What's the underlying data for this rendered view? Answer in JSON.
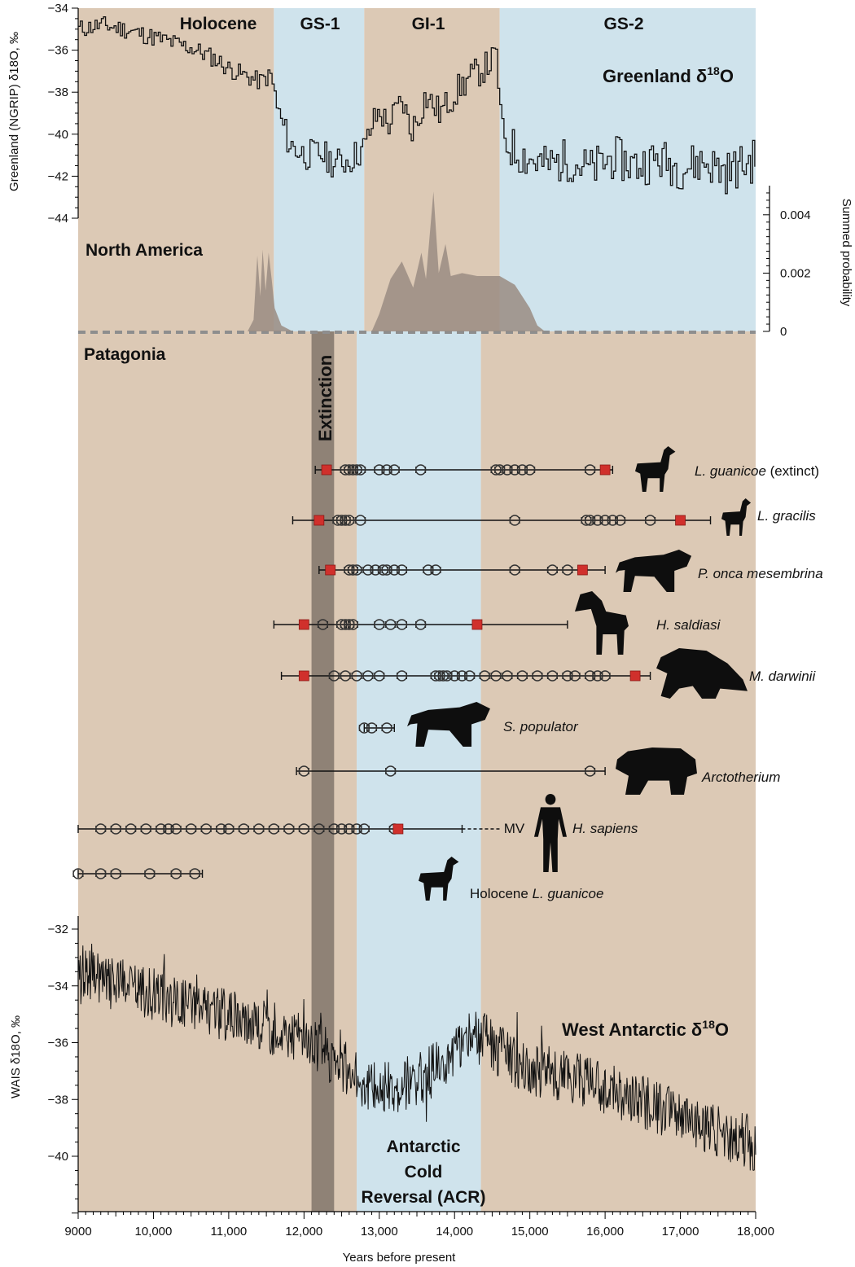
{
  "chart_data": {
    "type": "line",
    "x_axis": {
      "label": "Years before present",
      "ticks": [
        9000,
        10000,
        11000,
        12000,
        13000,
        14000,
        15000,
        16000,
        17000,
        18000
      ],
      "tick_labels": [
        "9000",
        "10,000",
        "11,000",
        "12,000",
        "13,000",
        "14,000",
        "15,000",
        "16,000",
        "17,000",
        "18,000"
      ],
      "range": [
        9000,
        18000
      ]
    },
    "periods_top": [
      {
        "label": "Holocene",
        "start": 9000,
        "end": 11600,
        "color": "#dcc9b5"
      },
      {
        "label": "GS-1",
        "start": 11600,
        "end": 12800,
        "color": "#cfe3ec"
      },
      {
        "label": "GI-1",
        "start": 12800,
        "end": 14600,
        "color": "#dcc9b5"
      },
      {
        "label": "GS-2",
        "start": 14600,
        "end": 18000,
        "color": "#cfe3ec"
      }
    ],
    "periods_bottom": [
      {
        "start": 9000,
        "end": 12700,
        "color": "#dcc9b5"
      },
      {
        "start": 12700,
        "end": 14350,
        "color": "#cfe3ec"
      },
      {
        "start": 14350,
        "end": 18000,
        "color": "#dcc9b5"
      }
    ],
    "greenland": {
      "title": "Greenland δ18O",
      "ylabel": "Greenland (NGRIP) δ18O, ‰",
      "ylim": [
        -44,
        -34
      ],
      "yticks": [
        -34,
        -36,
        -38,
        -40,
        -42,
        -44
      ],
      "points": [
        [
          9000,
          -35.0
        ],
        [
          9300,
          -34.8
        ],
        [
          9600,
          -35.0
        ],
        [
          9900,
          -35.3
        ],
        [
          10200,
          -35.6
        ],
        [
          10500,
          -35.9
        ],
        [
          10800,
          -36.4
        ],
        [
          11000,
          -36.9
        ],
        [
          11200,
          -37.2
        ],
        [
          11400,
          -37.5
        ],
        [
          11550,
          -37.2
        ],
        [
          11650,
          -39.0
        ],
        [
          11800,
          -40.5
        ],
        [
          12000,
          -41.0
        ],
        [
          12200,
          -40.9
        ],
        [
          12400,
          -41.4
        ],
        [
          12600,
          -41.2
        ],
        [
          12800,
          -40.6
        ],
        [
          12900,
          -39.5
        ],
        [
          13000,
          -38.9
        ],
        [
          13100,
          -39.6
        ],
        [
          13200,
          -39.0
        ],
        [
          13300,
          -38.4
        ],
        [
          13400,
          -39.8
        ],
        [
          13500,
          -39.3
        ],
        [
          13600,
          -38.2
        ],
        [
          13700,
          -38.6
        ],
        [
          13800,
          -39.0
        ],
        [
          14000,
          -38.0
        ],
        [
          14200,
          -37.3
        ],
        [
          14400,
          -36.8
        ],
        [
          14550,
          -36.3
        ],
        [
          14620,
          -40.2
        ],
        [
          14800,
          -40.8
        ],
        [
          15000,
          -41.2
        ],
        [
          15200,
          -41.5
        ],
        [
          15500,
          -41.2
        ],
        [
          15800,
          -41.7
        ],
        [
          16100,
          -41.1
        ],
        [
          16400,
          -41.5
        ],
        [
          16700,
          -41.2
        ],
        [
          17000,
          -41.6
        ],
        [
          17300,
          -41.3
        ],
        [
          17600,
          -41.8
        ],
        [
          17800,
          -41.5
        ],
        [
          18000,
          -41.2
        ]
      ]
    },
    "north_america_probability": {
      "region_label": "North America",
      "ylabel": "Summed probability",
      "ylim": [
        0,
        0.005
      ],
      "yticks": [
        0,
        0.002,
        0.004
      ],
      "ytick_labels": [
        "0",
        "0.002",
        "0.004"
      ],
      "points": [
        [
          11250,
          0
        ],
        [
          11330,
          0.0004
        ],
        [
          11380,
          0.0026
        ],
        [
          11420,
          0.0012
        ],
        [
          11450,
          0.0028
        ],
        [
          11490,
          0.0014
        ],
        [
          11530,
          0.0027
        ],
        [
          11570,
          0.0018
        ],
        [
          11610,
          0.0008
        ],
        [
          11700,
          0.0002
        ],
        [
          11850,
          0
        ],
        [
          12900,
          0
        ],
        [
          13000,
          0.0006
        ],
        [
          13150,
          0.0018
        ],
        [
          13300,
          0.0024
        ],
        [
          13450,
          0.0015
        ],
        [
          13560,
          0.0027
        ],
        [
          13620,
          0.0018
        ],
        [
          13720,
          0.0048
        ],
        [
          13790,
          0.002
        ],
        [
          13880,
          0.003
        ],
        [
          13950,
          0.0019
        ],
        [
          14100,
          0.002
        ],
        [
          14300,
          0.0019
        ],
        [
          14600,
          0.0019
        ],
        [
          14800,
          0.0016
        ],
        [
          15000,
          0.0008
        ],
        [
          15100,
          0.0002
        ],
        [
          15200,
          0
        ]
      ]
    },
    "patagonia": {
      "region_label": "Patagonia",
      "extinction_label": "Extinction",
      "extinction_band": [
        12100,
        12400
      ],
      "species": [
        {
          "name": "L. guanicoe",
          "suffix": " (extinct)",
          "italic": true,
          "ages": [
            12550,
            12600,
            12650,
            12700,
            12750,
            13000,
            13100,
            13200,
            13550,
            14550,
            14600,
            14700,
            14800,
            14900,
            15000,
            15800
          ],
          "red": [
            12300,
            16000
          ],
          "bar": [
            12150,
            16100
          ],
          "silhouette": "guanaco"
        },
        {
          "name": "L. gracilis",
          "suffix": "",
          "italic": true,
          "ages": [
            12450,
            12500,
            12550,
            12600,
            12750,
            14800,
            15750,
            15800,
            15900,
            16000,
            16100,
            16200,
            16600
          ],
          "red": [
            12200,
            17000
          ],
          "bar": [
            11850,
            17400
          ],
          "silhouette": "guanaco"
        },
        {
          "name": "P. onca mesembrina",
          "suffix": "",
          "italic": true,
          "ages": [
            12600,
            12650,
            12700,
            12850,
            12950,
            13050,
            13100,
            13200,
            13300,
            13650,
            13750,
            14800,
            15300,
            15500
          ],
          "red": [
            12350,
            15700
          ],
          "bar": [
            12200,
            16000
          ],
          "silhouette": "jaguar"
        },
        {
          "name": "H. saldiasi",
          "suffix": "",
          "italic": true,
          "ages": [
            12250,
            12500,
            12550,
            12600,
            12650,
            13000,
            13150,
            13300,
            13550
          ],
          "red": [
            12000,
            14300
          ],
          "bar": [
            11600,
            15500
          ],
          "silhouette": "horse"
        },
        {
          "name": "M. darwinii",
          "suffix": "",
          "italic": true,
          "ages": [
            12400,
            12550,
            12700,
            12850,
            13000,
            13300,
            13750,
            13800,
            13850,
            13900,
            14000,
            14100,
            14200,
            14400,
            14550,
            14700,
            14900,
            15100,
            15300,
            15500,
            15600,
            15800,
            15900,
            16000
          ],
          "red": [
            12000,
            16400
          ],
          "bar": [
            11700,
            16600
          ],
          "silhouette": "sloth"
        },
        {
          "name": "S. populator",
          "suffix": "",
          "italic": true,
          "ages": [
            12800,
            12900,
            13100
          ],
          "red": [],
          "bar": [
            12800,
            13200
          ],
          "silhouette": "smilodon"
        },
        {
          "name": "Arctotherium",
          "suffix": "",
          "italic": true,
          "ages": [
            12000,
            13150,
            15800
          ],
          "red": [],
          "bar": [
            11900,
            16000
          ],
          "silhouette": "bear"
        },
        {
          "name": "H. sapiens",
          "suffix": "",
          "italic": true,
          "ages": [
            9300,
            9500,
            9700,
            9900,
            10100,
            10200,
            10300,
            10500,
            10700,
            10900,
            11000,
            11200,
            11400,
            11600,
            11800,
            12000,
            12200,
            12400,
            12500,
            12600,
            12700,
            12800,
            13200
          ],
          "red": [
            13250
          ],
          "bar": [
            9000,
            14100
          ],
          "dashed_to": 14600,
          "tag": "MV",
          "silhouette": "human"
        },
        {
          "name": "L. guanicoe",
          "prefix": "Holocene ",
          "suffix": "",
          "italic": true,
          "ages": [
            9000,
            9300,
            9500,
            9950,
            10300,
            10550
          ],
          "red": [],
          "bar": [
            9000,
            10650
          ],
          "silhouette": "guanaco"
        }
      ]
    },
    "wais": {
      "title": "West Antarctic δ18O",
      "ylabel": "WAIS δ18O, ‰",
      "ylim": [
        -42,
        -32
      ],
      "yticks": [
        -32,
        -34,
        -36,
        -38,
        -40
      ],
      "band_label": [
        "Antarctic",
        "Cold",
        "Reversal (ACR)"
      ],
      "points": [
        [
          9000,
          -33.3
        ],
        [
          9300,
          -33.8
        ],
        [
          9600,
          -34.0
        ],
        [
          9900,
          -34.2
        ],
        [
          10200,
          -34.5
        ],
        [
          10500,
          -34.6
        ],
        [
          10800,
          -34.9
        ],
        [
          11100,
          -35.1
        ],
        [
          11400,
          -35.4
        ],
        [
          11700,
          -35.6
        ],
        [
          12000,
          -35.8
        ],
        [
          12200,
          -36.2
        ],
        [
          12400,
          -36.6
        ],
        [
          12600,
          -37.0
        ],
        [
          12800,
          -37.4
        ],
        [
          13000,
          -37.6
        ],
        [
          13200,
          -37.6
        ],
        [
          13400,
          -37.4
        ],
        [
          13600,
          -37.2
        ],
        [
          13800,
          -36.8
        ],
        [
          14000,
          -36.4
        ],
        [
          14200,
          -35.9
        ],
        [
          14400,
          -35.8
        ],
        [
          14600,
          -36.3
        ],
        [
          14800,
          -36.6
        ],
        [
          15000,
          -36.9
        ],
        [
          15300,
          -37.1
        ],
        [
          15600,
          -37.3
        ],
        [
          15900,
          -37.5
        ],
        [
          16200,
          -37.8
        ],
        [
          16500,
          -38.1
        ],
        [
          16800,
          -38.4
        ],
        [
          17100,
          -38.7
        ],
        [
          17400,
          -39.0
        ],
        [
          17700,
          -39.3
        ],
        [
          18000,
          -39.6
        ]
      ]
    },
    "colors": {
      "tan": "#dcc9b5",
      "blue": "#cfe3ec",
      "band": "#8f8276",
      "red": "#d0302c",
      "prob": "#9a8c83"
    }
  }
}
